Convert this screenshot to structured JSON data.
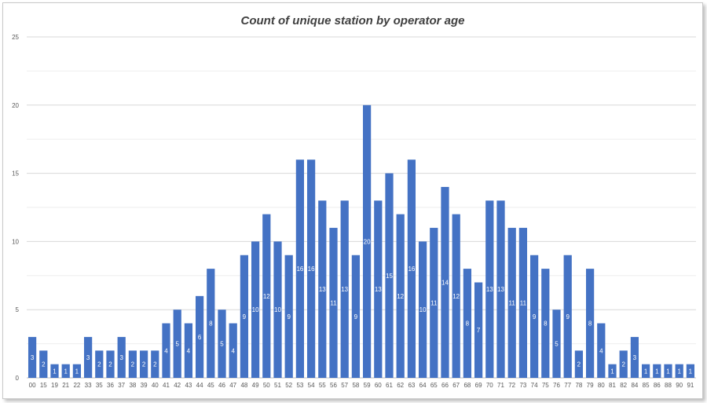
{
  "chart_data": {
    "type": "bar",
    "title": "Count of unique station by operator age",
    "xlabel": "",
    "ylabel": "",
    "ylim": [
      0,
      25
    ],
    "yticks": [
      0,
      5,
      10,
      15,
      20,
      25
    ],
    "grid": true,
    "legend": "none",
    "bar_color": "#4472c4",
    "categories": [
      "00",
      "15",
      "19",
      "21",
      "22",
      "33",
      "35",
      "36",
      "37",
      "38",
      "39",
      "40",
      "41",
      "42",
      "43",
      "44",
      "45",
      "46",
      "47",
      "48",
      "49",
      "50",
      "51",
      "52",
      "53",
      "54",
      "55",
      "56",
      "57",
      "58",
      "59",
      "60",
      "61",
      "62",
      "63",
      "64",
      "65",
      "66",
      "67",
      "68",
      "69",
      "70",
      "71",
      "72",
      "73",
      "74",
      "75",
      "76",
      "77",
      "78",
      "79",
      "80",
      "81",
      "82",
      "84",
      "85",
      "86",
      "88",
      "90",
      "91"
    ],
    "values": [
      3,
      2,
      1,
      1,
      1,
      3,
      2,
      2,
      3,
      2,
      2,
      2,
      4,
      5,
      4,
      6,
      8,
      5,
      4,
      9,
      10,
      12,
      10,
      9,
      16,
      16,
      13,
      11,
      13,
      9,
      20,
      13,
      15,
      12,
      16,
      10,
      11,
      14,
      12,
      8,
      7,
      13,
      13,
      11,
      11,
      9,
      8,
      5,
      9,
      2,
      8,
      4,
      1,
      2,
      3,
      1,
      1,
      1,
      1,
      1
    ]
  }
}
